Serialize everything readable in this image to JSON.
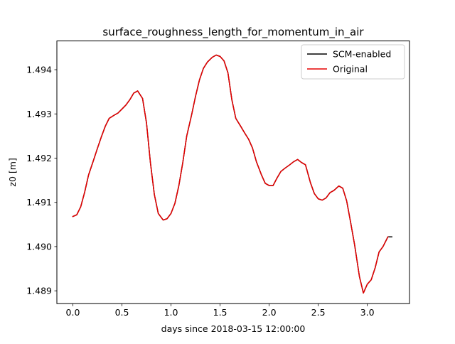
{
  "chart_data": {
    "type": "line",
    "title": "surface_roughness_length_for_momentum_in_air",
    "xlabel": "days since 2018-03-15 12:00:00",
    "ylabel": "z0 [m]",
    "xlim": [
      -0.163,
      3.43
    ],
    "ylim": [
      1.48871,
      1.49465
    ],
    "xticks": [
      0.0,
      0.5,
      1.0,
      1.5,
      2.0,
      2.5,
      3.0
    ],
    "xtick_labels": [
      "0.0",
      "0.5",
      "1.0",
      "1.5",
      "2.0",
      "2.5",
      "3.0"
    ],
    "yticks": [
      1.489,
      1.49,
      1.491,
      1.492,
      1.493,
      1.494
    ],
    "ytick_labels": [
      "1.489",
      "1.490",
      "1.491",
      "1.492",
      "1.493",
      "1.494"
    ],
    "grid": false,
    "legend": "top-right",
    "series": [
      {
        "name": "SCM-enabled",
        "color": "#000000",
        "x": [
          0.0,
          0.04,
          0.08,
          0.12,
          0.16,
          0.21,
          0.25,
          0.29,
          0.33,
          0.37,
          0.42,
          0.46,
          0.5,
          0.54,
          0.58,
          0.62,
          0.66,
          0.71,
          0.75,
          0.79,
          0.83,
          0.87,
          0.92,
          0.96,
          1.0,
          1.04,
          1.08,
          1.12,
          1.16,
          1.21,
          1.25,
          1.29,
          1.33,
          1.37,
          1.42,
          1.46,
          1.5,
          1.54,
          1.58,
          1.62,
          1.66,
          1.71,
          1.75,
          1.79,
          1.83,
          1.87,
          1.92,
          1.96,
          2.0,
          2.04,
          2.08,
          2.12,
          2.16,
          2.21,
          2.25,
          2.29,
          2.33,
          2.37,
          2.42,
          2.46,
          2.5,
          2.54,
          2.58,
          2.62,
          2.66,
          2.71,
          2.75,
          2.79,
          2.83,
          2.87,
          2.92,
          2.96,
          3.0,
          3.04,
          3.08,
          3.12,
          3.16,
          3.21,
          3.25
        ],
        "values": [
          1.49068,
          1.49072,
          1.4909,
          1.49123,
          1.49162,
          1.49195,
          1.49222,
          1.49248,
          1.49272,
          1.4929,
          1.49297,
          1.49302,
          1.49311,
          1.4932,
          1.49332,
          1.49347,
          1.49352,
          1.49335,
          1.4928,
          1.4919,
          1.49118,
          1.49075,
          1.4906,
          1.49063,
          1.49075,
          1.49098,
          1.49138,
          1.4919,
          1.4925,
          1.49298,
          1.4934,
          1.49377,
          1.49403,
          1.49417,
          1.49428,
          1.49433,
          1.4943,
          1.4942,
          1.49393,
          1.49332,
          1.4929,
          1.49272,
          1.49257,
          1.49243,
          1.49223,
          1.49192,
          1.49163,
          1.49143,
          1.49138,
          1.49138,
          1.49155,
          1.4917,
          1.49177,
          1.49185,
          1.49192,
          1.49197,
          1.4919,
          1.49185,
          1.49145,
          1.4912,
          1.49108,
          1.49105,
          1.4911,
          1.49122,
          1.49127,
          1.49137,
          1.49132,
          1.49103,
          1.49055,
          1.49005,
          1.48932,
          1.48895,
          1.48915,
          1.48925,
          1.48952,
          1.48988,
          1.49,
          1.49022,
          1.49022
        ]
      },
      {
        "name": "Original",
        "color": "#e60000",
        "x": [
          0.0,
          0.04,
          0.08,
          0.12,
          0.16,
          0.21,
          0.25,
          0.29,
          0.33,
          0.37,
          0.42,
          0.46,
          0.5,
          0.54,
          0.58,
          0.62,
          0.66,
          0.71,
          0.75,
          0.79,
          0.83,
          0.87,
          0.92,
          0.96,
          1.0,
          1.04,
          1.08,
          1.12,
          1.16,
          1.21,
          1.25,
          1.29,
          1.33,
          1.37,
          1.42,
          1.46,
          1.5,
          1.54,
          1.58,
          1.62,
          1.66,
          1.71,
          1.75,
          1.79,
          1.83,
          1.87,
          1.92,
          1.96,
          2.0,
          2.04,
          2.08,
          2.12,
          2.16,
          2.21,
          2.25,
          2.29,
          2.33,
          2.37,
          2.42,
          2.46,
          2.5,
          2.54,
          2.58,
          2.62,
          2.66,
          2.71,
          2.75,
          2.79,
          2.83,
          2.87,
          2.92,
          2.96,
          3.0,
          3.04,
          3.08,
          3.12,
          3.16,
          3.21
        ],
        "values": [
          1.49068,
          1.49072,
          1.4909,
          1.49123,
          1.49162,
          1.49195,
          1.49222,
          1.49248,
          1.49272,
          1.4929,
          1.49297,
          1.49302,
          1.49311,
          1.4932,
          1.49332,
          1.49347,
          1.49352,
          1.49335,
          1.4928,
          1.4919,
          1.49118,
          1.49075,
          1.4906,
          1.49063,
          1.49075,
          1.49098,
          1.49138,
          1.4919,
          1.4925,
          1.49298,
          1.4934,
          1.49377,
          1.49403,
          1.49417,
          1.49428,
          1.49433,
          1.4943,
          1.4942,
          1.49393,
          1.49332,
          1.4929,
          1.49272,
          1.49257,
          1.49243,
          1.49223,
          1.49192,
          1.49163,
          1.49143,
          1.49138,
          1.49138,
          1.49155,
          1.4917,
          1.49177,
          1.49185,
          1.49192,
          1.49197,
          1.4919,
          1.49185,
          1.49145,
          1.4912,
          1.49108,
          1.49105,
          1.4911,
          1.49122,
          1.49127,
          1.49137,
          1.49132,
          1.49103,
          1.49055,
          1.49005,
          1.48932,
          1.48895,
          1.48915,
          1.48925,
          1.48952,
          1.48988,
          1.49,
          1.49022
        ]
      }
    ]
  }
}
